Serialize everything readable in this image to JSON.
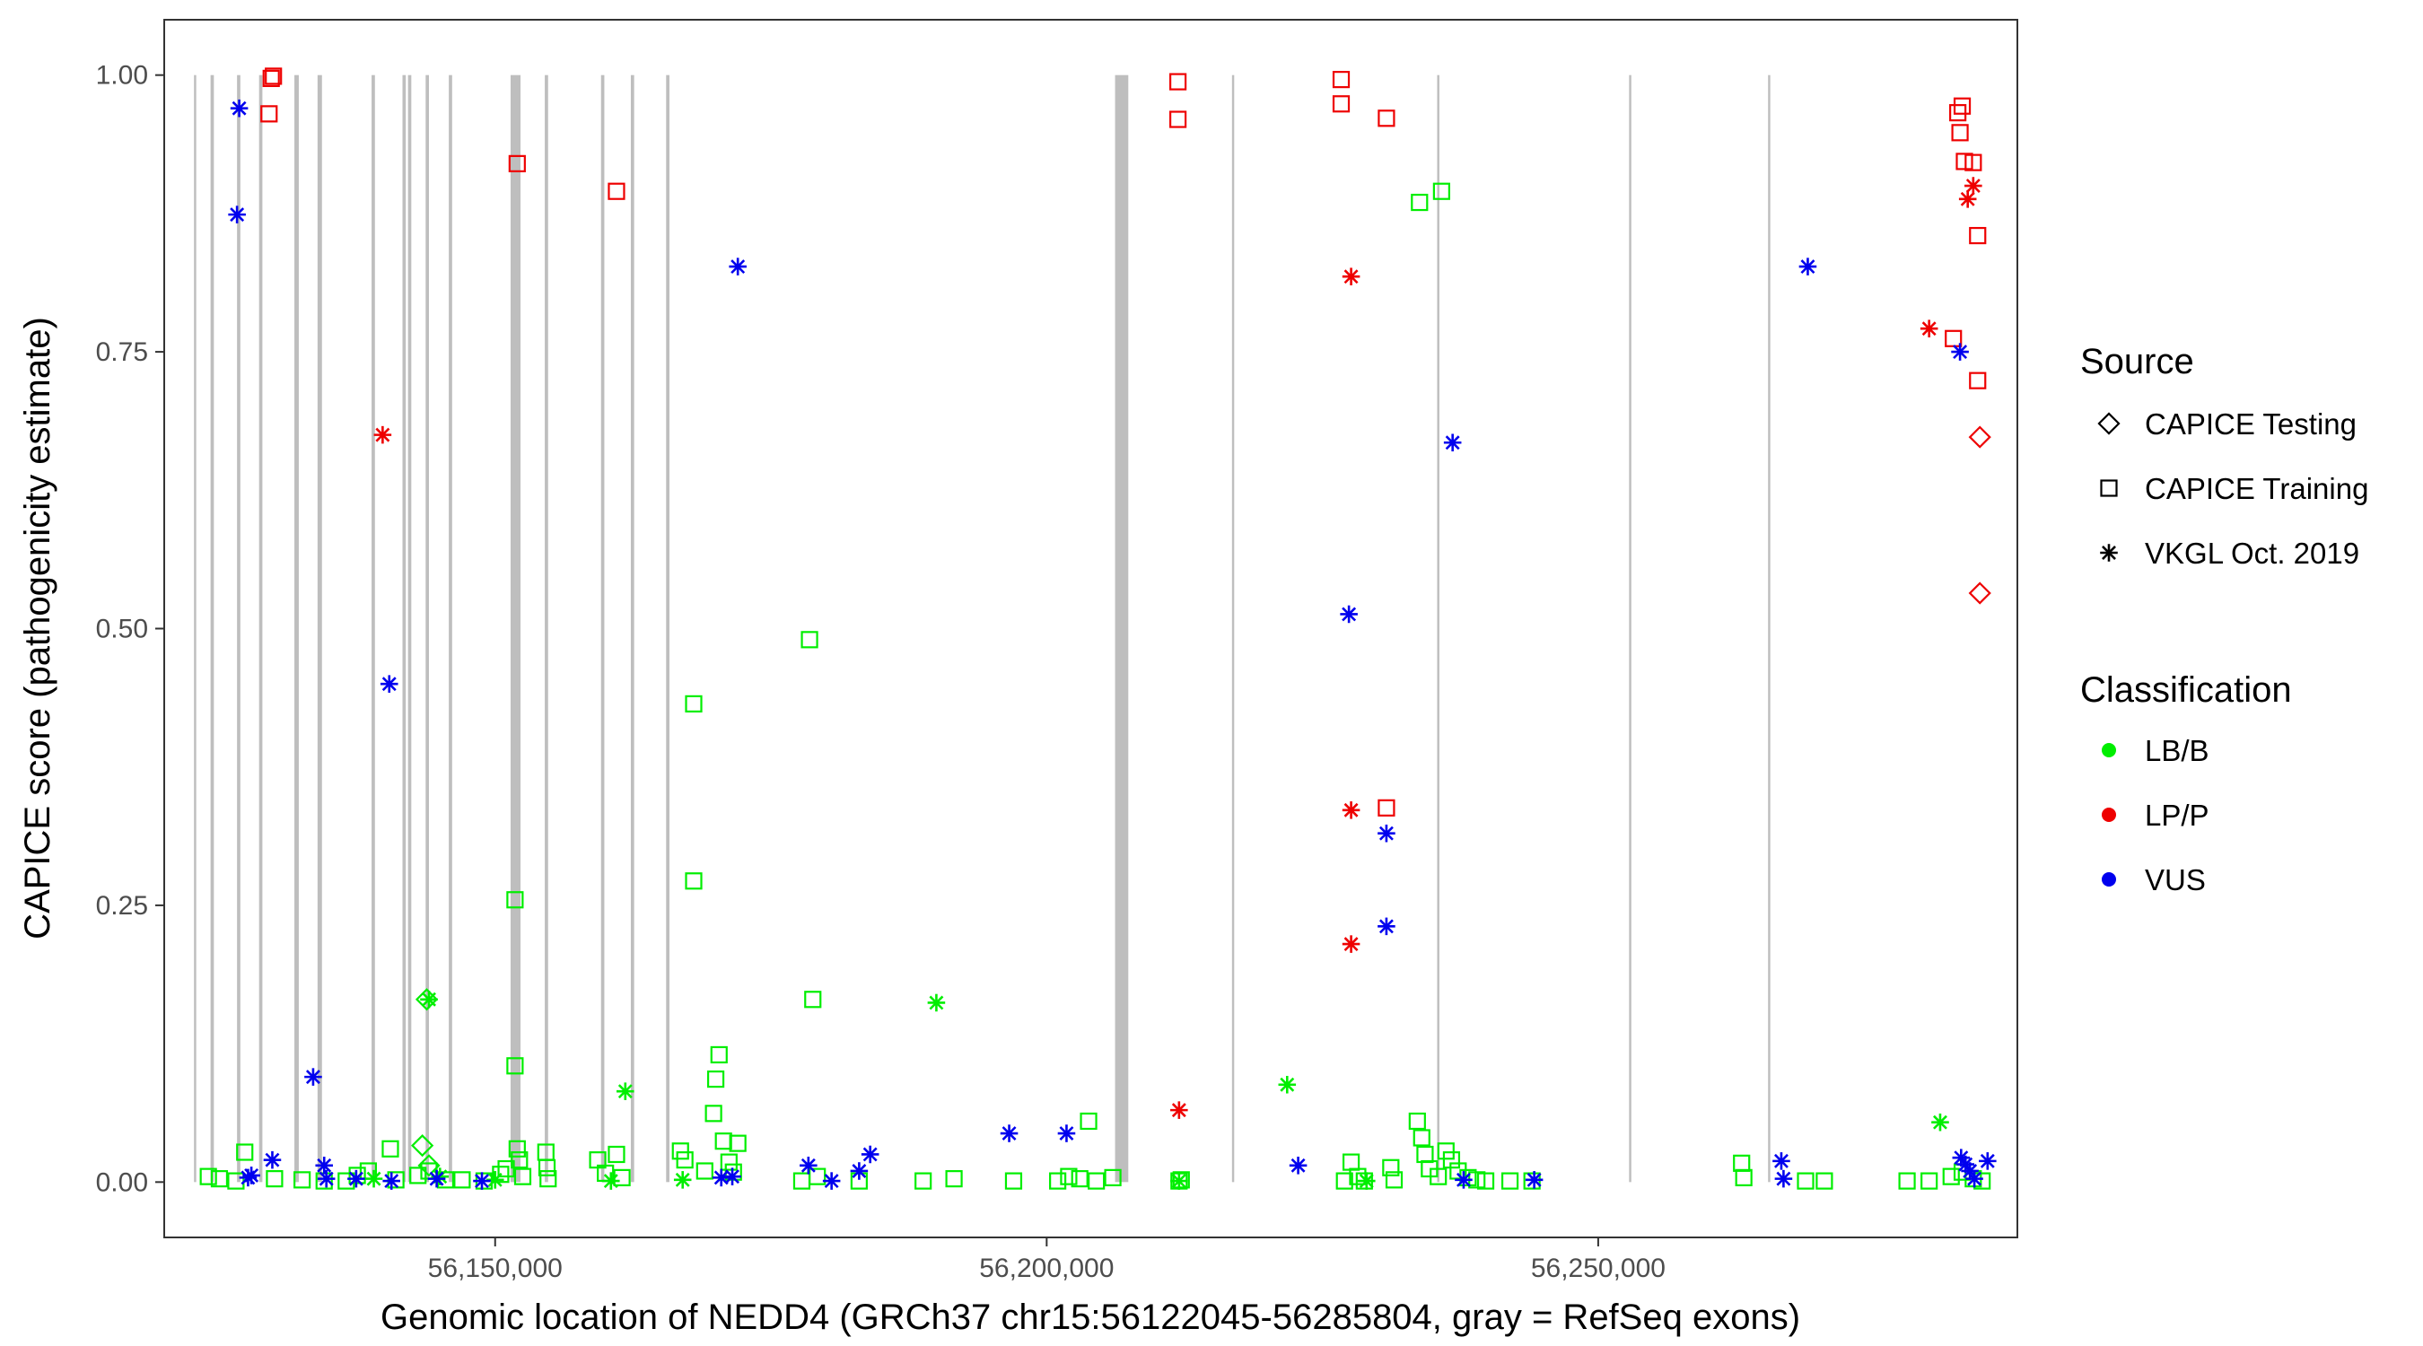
{
  "chart_data": {
    "type": "scatter",
    "xlabel": "Genomic location of NEDD4 (GRCh37 chr15:56122045-56285804, gray = RefSeq exons)",
    "ylabel": "CAPICE score (pathogenicity estimate)",
    "xlim": [
      56120000,
      56288000
    ],
    "ylim": [
      -0.05,
      1.05
    ],
    "x_ticks": [
      56150000,
      56200000,
      56250000
    ],
    "x_tick_labels": [
      "56,150,000",
      "56,200,000",
      "56,250,000"
    ],
    "y_ticks": [
      0,
      0.25,
      0.5,
      0.75,
      1.0
    ],
    "y_tick_labels": [
      "0.00",
      "0.25",
      "0.50",
      "0.75",
      "1.00"
    ],
    "grid": false,
    "legend_placement": "right",
    "colors": {
      "LB/B": "#00ee00",
      "LP/P": "#ee0000",
      "VUS": "#0000ee",
      "exon": "#bebebe"
    },
    "exons": [
      [
        56122700,
        56122900
      ],
      [
        56124200,
        56124500
      ],
      [
        56126600,
        56126900
      ],
      [
        56128600,
        56128900
      ],
      [
        56131800,
        56132200
      ],
      [
        56133900,
        56134300
      ],
      [
        56138800,
        56139100
      ],
      [
        56141600,
        56141900
      ],
      [
        56142100,
        56142400
      ],
      [
        56143700,
        56144000
      ],
      [
        56145800,
        56146100
      ],
      [
        56151400,
        56152300
      ],
      [
        56154500,
        56154800
      ],
      [
        56159600,
        56159900
      ],
      [
        56162300,
        56162600
      ],
      [
        56165500,
        56165800
      ],
      [
        56206200,
        56207400
      ],
      [
        56216800,
        56217000
      ],
      [
        56235400,
        56235600
      ],
      [
        56252800,
        56253000
      ],
      [
        56265400,
        56265600
      ]
    ],
    "legend": {
      "source_title": "Source",
      "source_items": [
        {
          "label": "CAPICE Testing",
          "shape": "diamond"
        },
        {
          "label": "CAPICE Training",
          "shape": "square"
        },
        {
          "label": "VKGL Oct. 2019",
          "shape": "asterisk"
        }
      ],
      "class_title": "Classification",
      "class_items": [
        {
          "label": "LB/B",
          "color": "#00ee00"
        },
        {
          "label": "LP/P",
          "color": "#ee0000"
        },
        {
          "label": "VUS",
          "color": "#0000ee"
        }
      ]
    },
    "series": [
      {
        "source": "CAPICE Training",
        "shape": "square",
        "class": "LB/B",
        "points": [
          [
            56124000,
            0.005
          ],
          [
            56125000,
            0.003
          ],
          [
            56126500,
            0.001
          ],
          [
            56127300,
            0.027
          ],
          [
            56130000,
            0.003
          ],
          [
            56132500,
            0.002
          ],
          [
            56134500,
            0.001
          ],
          [
            56136500,
            0.001
          ],
          [
            56137500,
            0.006
          ],
          [
            56138500,
            0.01
          ],
          [
            56140500,
            0.03
          ],
          [
            56141000,
            0.002
          ],
          [
            56143000,
            0.006
          ],
          [
            56144000,
            0.01
          ],
          [
            56145500,
            0.002
          ],
          [
            56147000,
            0.002
          ],
          [
            56149000,
            0.001
          ],
          [
            56150500,
            0.007
          ],
          [
            56151000,
            0.012
          ],
          [
            56151800,
            0.255
          ],
          [
            56151800,
            0.105
          ],
          [
            56152000,
            0.03
          ],
          [
            56152200,
            0.02
          ],
          [
            56152500,
            0.005
          ],
          [
            56154600,
            0.027
          ],
          [
            56154700,
            0.013
          ],
          [
            56154800,
            0.003
          ],
          [
            56159300,
            0.02
          ],
          [
            56160000,
            0.008
          ],
          [
            56161000,
            0.025
          ],
          [
            56161500,
            0.004
          ],
          [
            56166800,
            0.028
          ],
          [
            56167200,
            0.02
          ],
          [
            56168000,
            0.432
          ],
          [
            56168000,
            0.272
          ],
          [
            56169000,
            0.01
          ],
          [
            56169800,
            0.062
          ],
          [
            56170000,
            0.093
          ],
          [
            56170300,
            0.115
          ],
          [
            56170700,
            0.037
          ],
          [
            56171200,
            0.018
          ],
          [
            56171600,
            0.009
          ],
          [
            56172000,
            0.035
          ],
          [
            56177800,
            0.001
          ],
          [
            56178500,
            0.49
          ],
          [
            56178800,
            0.165
          ],
          [
            56179200,
            0.005
          ],
          [
            56183000,
            0.001
          ],
          [
            56188800,
            0.001
          ],
          [
            56191600,
            0.003
          ],
          [
            56197000,
            0.001
          ],
          [
            56201000,
            0.001
          ],
          [
            56202000,
            0.005
          ],
          [
            56203000,
            0.003
          ],
          [
            56203800,
            0.055
          ],
          [
            56204500,
            0.001
          ],
          [
            56206000,
            0.004
          ],
          [
            56212000,
            0.001
          ],
          [
            56212200,
            0.002
          ],
          [
            56227000,
            0.001
          ],
          [
            56227600,
            0.018
          ],
          [
            56228200,
            0.005
          ],
          [
            56228800,
            0.001
          ],
          [
            56231200,
            0.013
          ],
          [
            56231500,
            0.002
          ],
          [
            56233800,
            0.885
          ],
          [
            56235800,
            0.895
          ],
          [
            56233600,
            0.055
          ],
          [
            56234000,
            0.04
          ],
          [
            56234300,
            0.025
          ],
          [
            56234700,
            0.012
          ],
          [
            56235500,
            0.005
          ],
          [
            56236200,
            0.028
          ],
          [
            56236700,
            0.02
          ],
          [
            56237300,
            0.01
          ],
          [
            56238200,
            0.004
          ],
          [
            56239000,
            0.002
          ],
          [
            56239800,
            0.001
          ],
          [
            56242000,
            0.001
          ],
          [
            56244000,
            0.001
          ],
          [
            56263000,
            0.017
          ],
          [
            56263200,
            0.004
          ],
          [
            56268800,
            0.001
          ],
          [
            56270500,
            0.001
          ],
          [
            56278000,
            0.001
          ],
          [
            56280000,
            0.001
          ],
          [
            56282000,
            0.005
          ],
          [
            56283000,
            0.009
          ],
          [
            56284000,
            0.003
          ],
          [
            56284800,
            0.001
          ]
        ]
      },
      {
        "source": "CAPICE Training",
        "shape": "square",
        "class": "LP/P",
        "points": [
          [
            56129700,
            0.997
          ],
          [
            56129900,
            0.999
          ],
          [
            56129500,
            0.965
          ],
          [
            56152000,
            0.92
          ],
          [
            56161000,
            0.895
          ],
          [
            56211900,
            0.994
          ],
          [
            56211900,
            0.96
          ],
          [
            56226700,
            0.996
          ],
          [
            56226700,
            0.974
          ],
          [
            56230800,
            0.961
          ],
          [
            56230800,
            0.338
          ],
          [
            56282600,
            0.966
          ],
          [
            56283000,
            0.972
          ],
          [
            56282800,
            0.948
          ],
          [
            56283200,
            0.922
          ],
          [
            56284000,
            0.921
          ],
          [
            56284400,
            0.855
          ],
          [
            56282200,
            0.762
          ],
          [
            56284400,
            0.724
          ]
        ]
      },
      {
        "source": "CAPICE Testing",
        "shape": "diamond",
        "class": "LB/B",
        "points": [
          [
            56143400,
            0.033
          ],
          [
            56143800,
            0.165
          ],
          [
            56144000,
            0.015
          ]
        ]
      },
      {
        "source": "CAPICE Testing",
        "shape": "diamond",
        "class": "LP/P",
        "points": [
          [
            56284600,
            0.673
          ],
          [
            56284600,
            0.532
          ]
        ]
      },
      {
        "source": "VKGL Oct. 2019",
        "shape": "asterisk",
        "class": "LB/B",
        "points": [
          [
            56144000,
            0.165
          ],
          [
            56145000,
            0.005
          ],
          [
            56161800,
            0.082
          ],
          [
            56190000,
            0.162
          ],
          [
            56221800,
            0.088
          ],
          [
            56281000,
            0.054
          ],
          [
            56139000,
            0.003
          ],
          [
            56150000,
            0.002
          ],
          [
            56160500,
            0.001
          ],
          [
            56167000,
            0.002
          ],
          [
            56212000,
            0.001
          ],
          [
            56229000,
            0.001
          ]
        ]
      },
      {
        "source": "VKGL Oct. 2019",
        "shape": "asterisk",
        "class": "LP/P",
        "points": [
          [
            56139800,
            0.675
          ],
          [
            56212000,
            0.065
          ],
          [
            56227600,
            0.818
          ],
          [
            56227600,
            0.336
          ],
          [
            56227600,
            0.215
          ],
          [
            56280000,
            0.771
          ],
          [
            56283500,
            0.888
          ],
          [
            56284000,
            0.9
          ]
        ]
      },
      {
        "source": "VKGL Oct. 2019",
        "shape": "asterisk",
        "class": "VUS",
        "points": [
          [
            56126800,
            0.97
          ],
          [
            56126600,
            0.874
          ],
          [
            56127600,
            0.004
          ],
          [
            56127900,
            0.006
          ],
          [
            56129800,
            0.02
          ],
          [
            56133500,
            0.095
          ],
          [
            56134500,
            0.015
          ],
          [
            56134700,
            0.003
          ],
          [
            56137400,
            0.003
          ],
          [
            56140400,
            0.45
          ],
          [
            56140600,
            0.001
          ],
          [
            56144700,
            0.003
          ],
          [
            56148800,
            0.001
          ],
          [
            56170500,
            0.004
          ],
          [
            56171500,
            0.005
          ],
          [
            56172000,
            0.827
          ],
          [
            56178400,
            0.015
          ],
          [
            56180500,
            0.001
          ],
          [
            56183000,
            0.01
          ],
          [
            56184000,
            0.025
          ],
          [
            56196600,
            0.044
          ],
          [
            56201800,
            0.044
          ],
          [
            56227400,
            0.513
          ],
          [
            56230800,
            0.315
          ],
          [
            56230800,
            0.231
          ],
          [
            56236800,
            0.668
          ],
          [
            56222800,
            0.015
          ],
          [
            56237800,
            0.002
          ],
          [
            56244200,
            0.002
          ],
          [
            56266600,
            0.019
          ],
          [
            56266800,
            0.003
          ],
          [
            56269000,
            0.827
          ],
          [
            56282800,
            0.75
          ],
          [
            56282900,
            0.022
          ],
          [
            56283300,
            0.016
          ],
          [
            56283700,
            0.01
          ],
          [
            56284100,
            0.003
          ],
          [
            56285300,
            0.019
          ]
        ]
      }
    ]
  }
}
